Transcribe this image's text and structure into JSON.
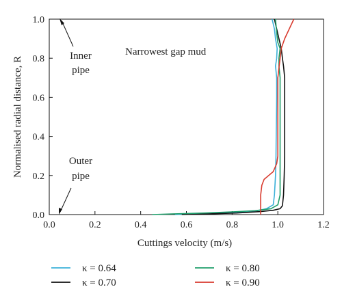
{
  "chart_data": {
    "type": "line",
    "title": "",
    "xlabel": "Cuttings velocity (m/s)",
    "ylabel": "Normalised radial distance, R",
    "xlim": [
      0.0,
      1.2
    ],
    "ylim": [
      0.0,
      1.0
    ],
    "xticks": [
      "0.0",
      "0.2",
      "0.4",
      "0.6",
      "0.8",
      "1.0",
      "1.2"
    ],
    "yticks": [
      "0.0",
      "0.2",
      "0.4",
      "0.6",
      "0.8",
      "1.0"
    ],
    "grid": false,
    "legend_position": "bottom",
    "annotations": {
      "plot_label": "Narrowest gap mud",
      "inner_pipe": [
        "Inner",
        "pipe"
      ],
      "outer_pipe": [
        "Outer",
        "pipe"
      ]
    },
    "series": [
      {
        "name": "κ = 0.64",
        "color": "#3ab0d8",
        "points": [
          [
            0.55,
            0.0
          ],
          [
            0.62,
            0.004
          ],
          [
            0.75,
            0.008
          ],
          [
            0.85,
            0.014
          ],
          [
            0.91,
            0.02
          ],
          [
            0.95,
            0.03
          ],
          [
            0.98,
            0.05
          ],
          [
            0.985,
            0.1
          ],
          [
            0.99,
            0.2
          ],
          [
            0.992,
            0.3
          ],
          [
            0.993,
            0.4
          ],
          [
            0.994,
            0.5
          ],
          [
            0.995,
            0.6
          ],
          [
            0.995,
            0.7
          ],
          [
            0.99,
            0.76
          ],
          [
            0.995,
            0.8
          ],
          [
            0.997,
            0.85
          ],
          [
            0.99,
            0.9
          ],
          [
            0.985,
            0.95
          ],
          [
            0.975,
            1.0
          ]
        ]
      },
      {
        "name": "κ = 0.70",
        "color": "#111111",
        "points": [
          [
            0.58,
            0.0
          ],
          [
            0.7,
            0.004
          ],
          [
            0.82,
            0.008
          ],
          [
            0.92,
            0.015
          ],
          [
            0.98,
            0.022
          ],
          [
            1.01,
            0.03
          ],
          [
            1.02,
            0.045
          ],
          [
            1.025,
            0.1
          ],
          [
            1.028,
            0.2
          ],
          [
            1.03,
            0.3
          ],
          [
            1.03,
            0.4
          ],
          [
            1.03,
            0.5
          ],
          [
            1.03,
            0.6
          ],
          [
            1.03,
            0.7
          ],
          [
            1.025,
            0.76
          ],
          [
            1.02,
            0.8
          ],
          [
            1.015,
            0.85
          ],
          [
            1.005,
            0.9
          ],
          [
            0.995,
            0.95
          ],
          [
            0.985,
            1.0
          ]
        ]
      },
      {
        "name": "κ = 0.80",
        "color": "#1e9e6a",
        "points": [
          [
            0.45,
            0.0
          ],
          [
            0.55,
            0.004
          ],
          [
            0.68,
            0.008
          ],
          [
            0.8,
            0.014
          ],
          [
            0.9,
            0.02
          ],
          [
            0.97,
            0.03
          ],
          [
            1.0,
            0.05
          ],
          [
            1.01,
            0.1
          ],
          [
            1.01,
            0.2
          ],
          [
            1.01,
            0.3
          ],
          [
            1.01,
            0.4
          ],
          [
            1.01,
            0.5
          ],
          [
            1.01,
            0.6
          ],
          [
            1.01,
            0.7
          ],
          [
            1.005,
            0.76
          ],
          [
            1.005,
            0.8
          ],
          [
            1.01,
            0.85
          ],
          [
            1.0,
            0.88
          ],
          [
            0.995,
            0.93
          ],
          [
            0.99,
            1.0
          ]
        ]
      },
      {
        "name": "κ = 0.90",
        "color": "#d83a2e",
        "points": [
          [
            0.925,
            0.0
          ],
          [
            0.925,
            0.05
          ],
          [
            0.925,
            0.1
          ],
          [
            0.93,
            0.15
          ],
          [
            0.94,
            0.18
          ],
          [
            0.96,
            0.2
          ],
          [
            0.98,
            0.22
          ],
          [
            0.995,
            0.26
          ],
          [
            1.0,
            0.3
          ],
          [
            1.0,
            0.4
          ],
          [
            1.0,
            0.5
          ],
          [
            1.0,
            0.6
          ],
          [
            1.0,
            0.7
          ],
          [
            1.005,
            0.75
          ],
          [
            1.01,
            0.8
          ],
          [
            1.015,
            0.85
          ],
          [
            1.03,
            0.9
          ],
          [
            1.05,
            0.95
          ],
          [
            1.07,
            1.0
          ]
        ]
      }
    ]
  }
}
